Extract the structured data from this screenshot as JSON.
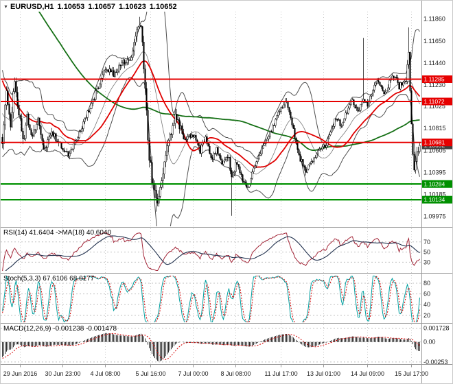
{
  "chart_data": {
    "type": "candlestick",
    "symbol_label": "EURUSD,H1",
    "ohlc_display": [
      "1.10653",
      "1.10657",
      "1.10623",
      "1.10652"
    ],
    "title_marker": "▼",
    "axes": {
      "price_min": 1.0988,
      "price_max": 1.1193,
      "price_ticks": [
        "1.11860",
        "1.11650",
        "1.11440",
        "1.11230",
        "1.11025",
        "1.10815",
        "1.10605",
        "1.10395",
        "1.10185",
        "1.09975"
      ]
    },
    "x_labels": [
      {
        "text": "29 Jun 2016",
        "bar": 13
      },
      {
        "text": "30 Jun 23:00",
        "bar": 44
      },
      {
        "text": "4 Jul 08:00",
        "bar": 75
      },
      {
        "text": "5 Jul 16:00",
        "bar": 108
      },
      {
        "text": "7 Jul 00:00",
        "bar": 139
      },
      {
        "text": "8 Jul 08:00",
        "bar": 170
      },
      {
        "text": "11 Jul 17:00",
        "bar": 203
      },
      {
        "text": "13 Jul 01:00",
        "bar": 234
      },
      {
        "text": "14 Jul 09:00",
        "bar": 266
      },
      {
        "text": "15 Jul 17:00",
        "bar": 298
      }
    ],
    "hlines": [
      {
        "value": 1.11285,
        "label": "1.11285",
        "color": "#e60000",
        "kind": "resistance"
      },
      {
        "value": 1.11072,
        "label": "1.11072",
        "color": "#e60000",
        "kind": "resistance"
      },
      {
        "value": 1.10681,
        "label": "1.10681",
        "color": "#e60000",
        "kind": "resistance"
      },
      {
        "value": 1.10284,
        "label": "1.10284",
        "color": "#009000",
        "kind": "support"
      },
      {
        "value": 1.10134,
        "label": "1.10134",
        "color": "#009000",
        "kind": "support"
      }
    ],
    "current_price": {
      "value": 1.10652,
      "label": "1.10652",
      "color": "#404040"
    },
    "series": {
      "history_bars": 120,
      "visible_bars": 305,
      "rng_seed": 97531,
      "last_close": 1.10652,
      "close_anchors": [
        [
          0,
          1.133
        ],
        [
          45,
          1.13
        ],
        [
          80,
          1.124
        ],
        [
          100,
          1.114
        ],
        [
          112,
          1.1085
        ],
        [
          119,
          1.107
        ],
        [
          120,
          1.1068
        ],
        [
          123,
          1.1115
        ],
        [
          126,
          1.1085
        ],
        [
          129,
          1.1128
        ],
        [
          132,
          1.1098
        ],
        [
          135,
          1.1068
        ],
        [
          138,
          1.1092
        ],
        [
          142,
          1.1072
        ],
        [
          146,
          1.1088
        ],
        [
          151,
          1.106
        ],
        [
          156,
          1.1078
        ],
        [
          162,
          1.1065
        ],
        [
          168,
          1.1056
        ],
        [
          174,
          1.107
        ],
        [
          180,
          1.109
        ],
        [
          186,
          1.1108
        ],
        [
          192,
          1.1128
        ],
        [
          196,
          1.114
        ],
        [
          202,
          1.1132
        ],
        [
          208,
          1.1145
        ],
        [
          214,
          1.115
        ],
        [
          218,
          1.1172
        ],
        [
          220,
          1.1185
        ],
        [
          222,
          1.1165
        ],
        [
          224,
          1.112
        ],
        [
          226,
          1.107
        ],
        [
          229,
          1.103
        ],
        [
          232,
          1.1008
        ],
        [
          235,
          1.1025
        ],
        [
          238,
          1.1052
        ],
        [
          242,
          1.1075
        ],
        [
          246,
          1.1092
        ],
        [
          250,
          1.1082
        ],
        [
          254,
          1.1068
        ],
        [
          258,
          1.1078
        ],
        [
          260,
          1.1072
        ],
        [
          264,
          1.106
        ],
        [
          268,
          1.1072
        ],
        [
          272,
          1.1052
        ],
        [
          276,
          1.1062
        ],
        [
          280,
          1.1048
        ],
        [
          284,
          1.1055
        ],
        [
          287,
          1.104
        ],
        [
          291,
          1.1048
        ],
        [
          295,
          1.1032
        ],
        [
          299,
          1.1025
        ],
        [
          303,
          1.1042
        ],
        [
          308,
          1.1058
        ],
        [
          313,
          1.107
        ],
        [
          318,
          1.1086
        ],
        [
          322,
          1.1098
        ],
        [
          324,
          1.1102
        ],
        [
          327,
          1.1106
        ],
        [
          330,
          1.1092
        ],
        [
          333,
          1.1072
        ],
        [
          337,
          1.1052
        ],
        [
          341,
          1.1042
        ],
        [
          345,
          1.1048
        ],
        [
          349,
          1.1058
        ],
        [
          353,
          1.1066
        ],
        [
          355,
          1.1062
        ],
        [
          359,
          1.1078
        ],
        [
          363,
          1.1092
        ],
        [
          367,
          1.1084
        ],
        [
          371,
          1.1098
        ],
        [
          375,
          1.1108
        ],
        [
          379,
          1.1096
        ],
        [
          383,
          1.111
        ],
        [
          386,
          1.1102
        ],
        [
          390,
          1.1118
        ],
        [
          394,
          1.1128
        ],
        [
          398,
          1.1112
        ],
        [
          402,
          1.1126
        ],
        [
          406,
          1.1132
        ],
        [
          409,
          1.112
        ],
        [
          412,
          1.1128
        ],
        [
          414,
          1.1125
        ],
        [
          416,
          1.115
        ],
        [
          418,
          1.108
        ],
        [
          420,
          1.1042
        ],
        [
          422,
          1.1058
        ],
        [
          424,
          1.1065
        ]
      ],
      "vol_anchors": [
        [
          0,
          0.001
        ],
        [
          56,
          0.0014
        ],
        [
          80,
          0.0012
        ],
        [
          100,
          0.0009
        ],
        [
          119,
          0.0009
        ],
        [
          120,
          0.0011
        ],
        [
          150,
          0.0008
        ],
        [
          170,
          0.0005
        ],
        [
          185,
          0.0005
        ],
        [
          200,
          0.0007
        ],
        [
          216,
          0.0008
        ],
        [
          224,
          0.0013
        ],
        [
          232,
          0.0015
        ],
        [
          245,
          0.0009
        ],
        [
          260,
          0.0006
        ],
        [
          275,
          0.0005
        ],
        [
          283,
          0.0006
        ],
        [
          287,
          0.001
        ],
        [
          292,
          0.0005
        ],
        [
          310,
          0.0005
        ],
        [
          330,
          0.0006
        ],
        [
          345,
          0.0005
        ],
        [
          360,
          0.0005
        ],
        [
          375,
          0.0005
        ],
        [
          395,
          0.0006
        ],
        [
          408,
          0.0005
        ],
        [
          413,
          0.0007
        ],
        [
          416,
          0.0013
        ],
        [
          419,
          0.0011
        ],
        [
          424,
          0.0007
        ]
      ],
      "wick_overrides": [
        {
          "bar": 100,
          "high": 1.1188
        },
        {
          "bar": 112,
          "low": 1.1002
        },
        {
          "bar": 167,
          "low": 1.0998
        },
        {
          "bar": 263,
          "high": 1.1168
        },
        {
          "bar": 296,
          "high": 1.1178
        }
      ]
    },
    "indicators": {
      "bb_period": 20,
      "bb_dev": 2,
      "ma_fast_period": 34,
      "ma_slow_period": 120,
      "rsi_period": 14,
      "rsi_ma_period": 18,
      "stoch": [
        5,
        3,
        3
      ],
      "macd": [
        12,
        26,
        9
      ]
    },
    "panels": {
      "rsi": {
        "label": "RSI(14) 41.6404  ->MA(18) 40.6040",
        "values": {
          "rsi": 41.6404,
          "ma": 40.604
        },
        "ticks": [
          {
            "value": 70,
            "label": "70"
          },
          {
            "value": 50,
            "label": "50"
          },
          {
            "value": 30,
            "label": "30"
          }
        ]
      },
      "stoch": {
        "label": "Stoch(5,3,3) 67.6106 68.0177",
        "values": {
          "main": 67.6106,
          "signal": 68.0177
        },
        "ticks": [
          {
            "value": 80,
            "label": "80"
          },
          {
            "value": 60,
            "label": "60"
          },
          {
            "value": 40,
            "label": "40"
          },
          {
            "value": 20,
            "label": "20"
          }
        ]
      },
      "macd": {
        "label": "MACD(12,26,9) -0.001238 -0.001478",
        "values": {
          "main": -0.001238,
          "signal": -0.001478
        },
        "ticks": [
          {
            "value": 0.001728,
            "label": "0.001728"
          },
          {
            "value": 0,
            "label": "0.00"
          },
          {
            "value": -0.00253,
            "label": "-0.00253"
          }
        ]
      }
    },
    "colors": {
      "background": "#ffffff",
      "candle": "#000000",
      "bollinger": "#4d4d4d",
      "bollinger_mid": "#777777",
      "ma_fast": "#e00000",
      "ma_slow": "#157015",
      "grid": "#c9c9c9",
      "level_grid": "#c0c0c0",
      "separator": "#9a9a9a",
      "axis_text": "#1a1a1a",
      "rsi": "#a32638",
      "rsi_ma": "#20304d",
      "stoch": "#00a0a0",
      "stoch_signal": "#d40000",
      "macd_hist": "#2e2e2e",
      "macd_signal": "#d40000",
      "tag_text": "#ffffff"
    }
  }
}
